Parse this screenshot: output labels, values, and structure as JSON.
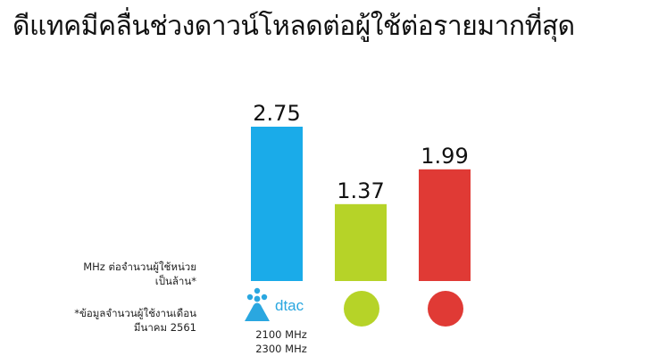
{
  "title": "ดีแทคมีคลื่นช่วงดาวน์โหลดต่อผู้ใช้ต่อรายมากที่สุด",
  "notes": {
    "unit": "MHz ต่อจำนวนผู้ใช้หน่วย\nเป็นล้าน*",
    "source": "*ข้อมูลจำนวนผู้ใช้งานเดือน\nมีนาคม 2561"
  },
  "dtac": {
    "logo_text": "dtac",
    "frequencies": "2100 MHz\n2300 MHz"
  },
  "colors": {
    "dtac": "#1aabe9",
    "operator2": "#b6d328",
    "operator3": "#e03a35"
  },
  "icons": {
    "operator2": "green-circle-logo-icon",
    "operator3": "red-circle-logo-icon",
    "dtac": "dtac-logo-icon"
  },
  "chart_data": {
    "type": "bar",
    "categories": [
      "dtac",
      "",
      ""
    ],
    "values": [
      2.75,
      1.37,
      1.99
    ],
    "colors": [
      "#1aabe9",
      "#b6d328",
      "#e03a35"
    ],
    "labels": [
      "2.75",
      "1.37",
      "1.99"
    ],
    "ylim": [
      0,
      2.75
    ],
    "grid": false,
    "axes_visible": false
  }
}
